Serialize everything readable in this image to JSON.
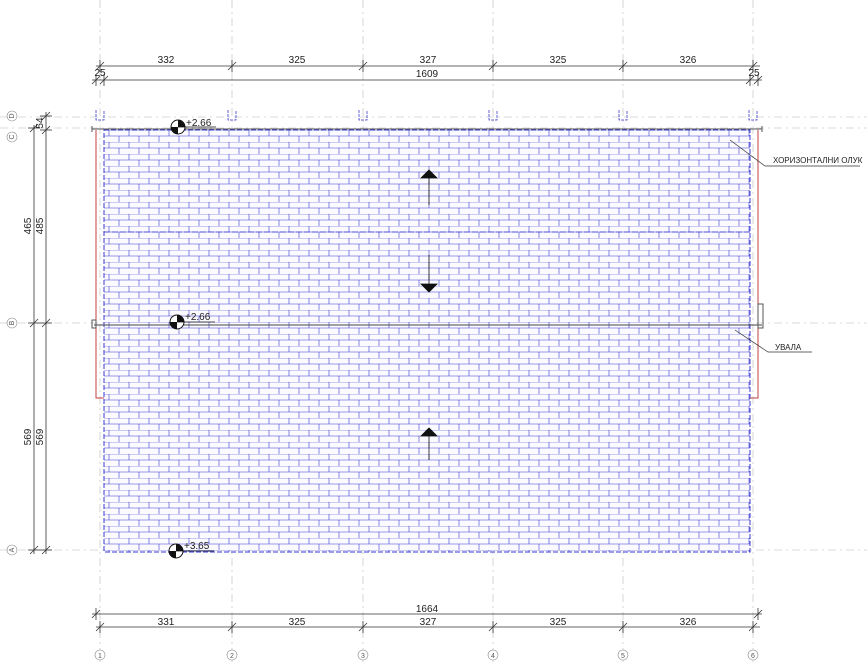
{
  "top_dims_row1": [
    "332",
    "325",
    "327",
    "325",
    "326"
  ],
  "top_dims_row2": {
    "left": "25",
    "total": "1609",
    "right": "25"
  },
  "bottom_dims": {
    "total": "1664",
    "segments": [
      "331",
      "325",
      "327",
      "325",
      "326"
    ]
  },
  "left_dims_outer": [
    "465",
    "569"
  ],
  "left_dims_inner": [
    "54",
    "485",
    "569"
  ],
  "grid_axes_vertical": [
    "1",
    "2",
    "3",
    "4",
    "5",
    "6"
  ],
  "grid_axes_horizontal": [
    "D",
    "C",
    "B",
    "A"
  ],
  "levels": [
    "+2.66",
    "+2.66",
    "+3.65"
  ],
  "annotations": {
    "gutter": "ХОРИЗОНТАЛНИ ОЛУК",
    "valley": "УВАЛА"
  },
  "colors": {
    "tiles": "#3a3ad0",
    "lines": "#333333",
    "red_edge": "#c04040",
    "grid": "#b0b0b0"
  }
}
